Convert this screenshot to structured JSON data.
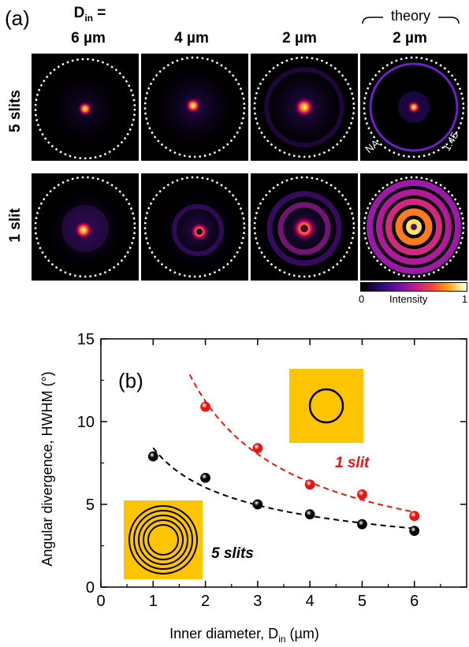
{
  "panel_a": {
    "label": "(a)",
    "din_label_main": "D",
    "din_label_sub": "in",
    "din_label_eq": " =",
    "theory_label": "theory",
    "columns": [
      "6 µm",
      "4 µm",
      "2 µm",
      "2 µm"
    ],
    "rows": [
      "5 slits",
      "1 slit"
    ],
    "na_label": "NA",
    "na_value": "1.45",
    "colorbar": {
      "min": "0",
      "label": "Intensity",
      "max": "1"
    }
  },
  "chart_data": {
    "type": "scatter",
    "panel_label": "(b)",
    "xlabel": "Inner diameter, D",
    "xlabel_sub": "in",
    "xlabel_unit": " (µm)",
    "ylabel": "Angular divergence, HWHM (°)",
    "xlim": [
      0,
      7
    ],
    "ylim": [
      0,
      15
    ],
    "xticks": [
      0,
      1,
      2,
      3,
      4,
      5,
      6
    ],
    "yticks": [
      0,
      5,
      10,
      15
    ],
    "series": [
      {
        "name": "1 slit",
        "color": "#e8140f",
        "x": [
          2,
          3,
          4,
          5,
          6
        ],
        "y": [
          10.9,
          8.4,
          6.2,
          5.6,
          4.3
        ],
        "fit": "dashed"
      },
      {
        "name": "5 slits",
        "color": "#000000",
        "x": [
          1,
          2,
          3,
          4,
          5,
          6
        ],
        "y": [
          7.9,
          6.6,
          5.0,
          4.4,
          3.8,
          3.4
        ],
        "fit": "dashed"
      }
    ]
  }
}
